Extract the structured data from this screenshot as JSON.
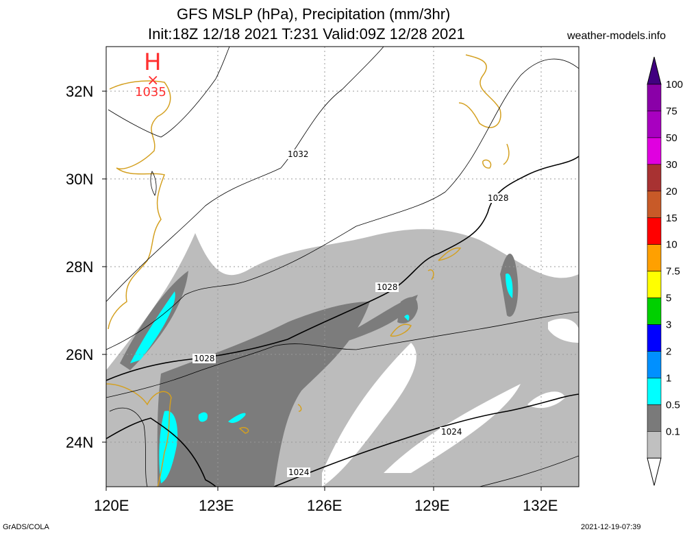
{
  "header": {
    "title_line1": "GFS MSLP (hPa), Precipitation (mm/3hr)",
    "title_line2": "Init:18Z 12/18 2021 T:231 Valid:09Z 12/28 2021",
    "site": "weather-models.info"
  },
  "axes": {
    "lon_labels": [
      "120E",
      "123E",
      "126E",
      "129E",
      "132E"
    ],
    "lat_labels": [
      "32N",
      "30N",
      "28N",
      "26N",
      "24N"
    ]
  },
  "pressure_center": {
    "symbol": "H",
    "marker": "×",
    "value": "1035"
  },
  "isobar_labels": [
    "1032",
    "1028",
    "1028",
    "1028",
    "1024",
    "1024"
  ],
  "colorbar": {
    "labels": [
      "100",
      "75",
      "50",
      "30",
      "20",
      "15",
      "10",
      "7.5",
      "5",
      "3",
      "2",
      "1",
      "0.5",
      "0.1"
    ],
    "colors": [
      "#8a00a8",
      "#a800c0",
      "#e000e0",
      "#a83232",
      "#c85a28",
      "#ff0000",
      "#ffa000",
      "#ffff00",
      "#00d000",
      "#0000ff",
      "#0090ff",
      "#00ffff",
      "#7a7a7a",
      "#c0c0c0"
    ],
    "top_arrow_color": "#400080"
  },
  "footer": {
    "left": "GrADS/COLA",
    "right": "2021-12-19-07:39"
  },
  "colors": {
    "coast": "#d4a020",
    "light_precip": "#bcbcbc",
    "dark_precip": "#7c7c7c",
    "heavy_precip": "#00ffff",
    "high": "#ff3030"
  }
}
